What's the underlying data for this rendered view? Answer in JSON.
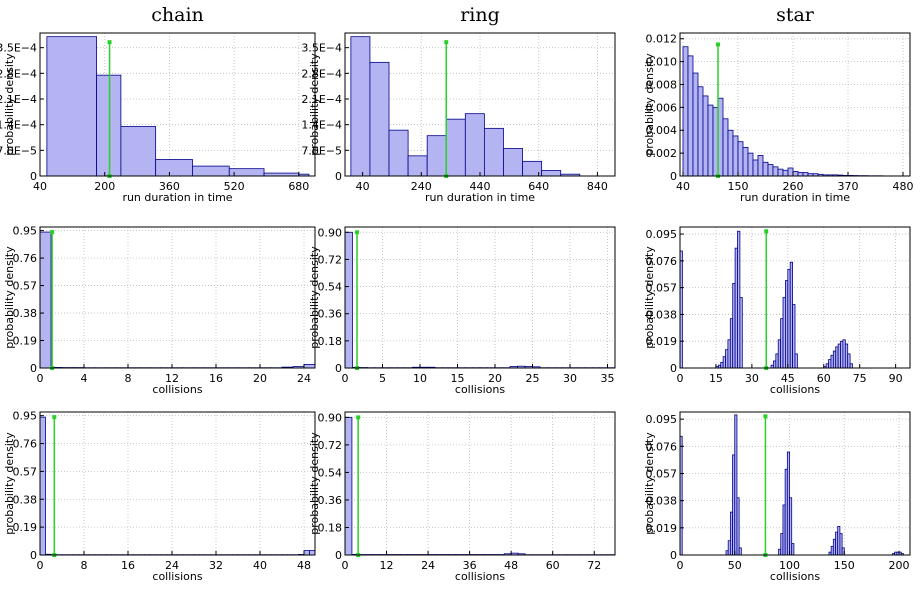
{
  "chart_data": [
    {
      "type": "histogram",
      "title": "chain",
      "xlabel": "run duration in time",
      "ylabel": "probability density",
      "bins": [
        57,
        180,
        240,
        326,
        417,
        508,
        594,
        680,
        705
      ],
      "values": [
        0.00038,
        0.000275,
        0.000135,
        4.5e-05,
        2.7e-05,
        2e-05,
        8e-06,
        5e-06
      ],
      "xlim": [
        40,
        720
      ],
      "xticks": [
        40,
        200,
        360,
        520,
        680
      ],
      "ylim": [
        0,
        0.00039
      ],
      "yticks": [
        0,
        {
          "value": 7e-05,
          "label": "7.0E−5"
        },
        {
          "value": 0.00014,
          "label": "1.4E−4"
        },
        {
          "value": 0.00021,
          "label": "2.1E−4"
        },
        {
          "value": 0.00028,
          "label": "2.8E−4"
        },
        {
          "value": 0.00035,
          "label": "3.5E−4"
        }
      ],
      "vline": {
        "x": 212,
        "ymax": 0.000365
      },
      "color": "#b4b4f2",
      "edgecolor": "#00008b",
      "line_color": "#2ad02a",
      "grid": true
    },
    {
      "type": "histogram",
      "title": "ring",
      "xlabel": "run duration in time",
      "ylabel": "probability density",
      "bins": [
        0,
        65,
        130,
        195,
        260,
        325,
        390,
        455,
        520,
        585,
        650,
        715,
        780
      ],
      "values": [
        0.00038,
        0.00031,
        0.000125,
        5.5e-05,
        0.00011,
        0.000155,
        0.00017,
        0.00013,
        7.5e-05,
        4e-05,
        1.5e-05,
        5e-06
      ],
      "xlim": [
        -20,
        900
      ],
      "xticks": [
        40,
        240,
        440,
        640,
        840
      ],
      "ylim": [
        0,
        0.00039
      ],
      "yticks": [
        0,
        {
          "value": 7e-05,
          "label": "7.0E−5"
        },
        {
          "value": 0.00014,
          "label": "1.4E−4"
        },
        {
          "value": 0.00021,
          "label": "2.1E−4"
        },
        {
          "value": 0.00028,
          "label": "2.8E−4"
        },
        {
          "value": 0.00035,
          "label": "3.5E−4"
        }
      ],
      "vline": {
        "x": 325,
        "ymax": 0.000365
      },
      "color": "#b4b4f2",
      "edgecolor": "#00008b",
      "line_color": "#2ad02a",
      "grid": true
    },
    {
      "type": "histogram",
      "title": "star",
      "xlabel": "run duration in time",
      "ylabel": "probability density",
      "bins": [
        40,
        50,
        60,
        70,
        80,
        90,
        100,
        110,
        120,
        130,
        140,
        150,
        160,
        170,
        180,
        190,
        200,
        210,
        220,
        230,
        240,
        250,
        260,
        270,
        280,
        290,
        300,
        310,
        320,
        330,
        340,
        350,
        360,
        370,
        380,
        390,
        400,
        410,
        420,
        430,
        440,
        450,
        460,
        470,
        480
      ],
      "values": [
        0.0113,
        0.0105,
        0.009,
        0.0078,
        0.007,
        0.0062,
        0.006,
        0.0068,
        0.005,
        0.004,
        0.0035,
        0.003,
        0.0025,
        0.002,
        0.0014,
        0.0018,
        0.0012,
        0.001,
        0.0008,
        0.0006,
        0.0005,
        0.0007,
        0.0004,
        0.0003,
        0.0003,
        0.0002,
        0.0002,
        0.00015,
        0.0001,
        0.0001,
        0.0001,
        8e-05,
        5e-05,
        5e-05,
        4e-05,
        3e-05,
        3e-05,
        2e-05,
        2e-05,
        2e-05,
        1e-05,
        1e-05,
        1e-05,
        1e-05
      ],
      "xlim": [
        34,
        494
      ],
      "xticks": [
        40,
        150,
        260,
        370,
        480
      ],
      "ylim": [
        0,
        0.0125
      ],
      "yticks": [
        0,
        0.002,
        0.004,
        0.006,
        0.008,
        {
          "value": 0.01,
          "label": "0.010"
        },
        0.012
      ],
      "vline": {
        "x": 110,
        "ymax": 0.0115
      },
      "color": "#b4b4f2",
      "edgecolor": "#00008b",
      "line_color": "#2ad02a",
      "grid": true
    },
    {
      "type": "histogram",
      "xlabel": "collisions",
      "ylabel": "probability density",
      "bins": [
        0,
        1,
        2,
        3,
        4,
        5,
        6,
        7,
        8,
        9,
        10,
        11,
        12,
        13,
        14,
        15,
        16,
        17,
        18,
        19,
        20,
        21,
        22,
        23,
        24,
        25
      ],
      "values": [
        0.94,
        0.004,
        0.003,
        0.003,
        0.002,
        0.002,
        0.002,
        0.002,
        0.002,
        0.002,
        0.002,
        0.002,
        0.002,
        0.002,
        0.002,
        0.002,
        0.002,
        0.002,
        0.002,
        0.002,
        0.002,
        0.002,
        0.006,
        0.01,
        0.025
      ],
      "xlim": [
        0,
        25
      ],
      "xticks": [
        0,
        4,
        8,
        12,
        16,
        20,
        24
      ],
      "ylim": [
        0,
        0.975
      ],
      "yticks": [
        0,
        0.19,
        0.38,
        0.57,
        0.76,
        0.95
      ],
      "vline": {
        "x": 1.1,
        "ymax": 0.94
      },
      "color": "#b4b4f2",
      "edgecolor": "#00008b",
      "line_color": "#2ad02a",
      "grid": true
    },
    {
      "type": "histogram",
      "xlabel": "collisions",
      "ylabel": "probability density",
      "bins": [
        0,
        1,
        2,
        3,
        4,
        5,
        6,
        7,
        8,
        9,
        10,
        11,
        12,
        13,
        14,
        15,
        16,
        17,
        18,
        19,
        20,
        21,
        22,
        23,
        24,
        25,
        26,
        27,
        28,
        29,
        30,
        31,
        32,
        33,
        34,
        35,
        36
      ],
      "values": [
        0.9,
        0.004,
        0.003,
        0.002,
        0.002,
        0.002,
        0.002,
        0.002,
        0.002,
        0.005,
        0.005,
        0.005,
        0.002,
        0.002,
        0.002,
        0.002,
        0.002,
        0.002,
        0.002,
        0.002,
        0.002,
        0.002,
        0.01,
        0.012,
        0.01,
        0.008,
        0.002,
        0.002,
        0.002,
        0.002,
        0.002,
        0.002,
        0.002,
        0.002,
        0.002,
        0.002
      ],
      "xlim": [
        0,
        36
      ],
      "xticks": [
        0,
        5,
        10,
        15,
        20,
        25,
        30,
        35
      ],
      "ylim": [
        0,
        0.935
      ],
      "yticks": [
        0,
        0.18,
        0.36,
        0.54,
        0.72,
        {
          "value": 0.9,
          "label": "0.90"
        }
      ],
      "vline": {
        "x": 1.6,
        "ymax": 0.9
      },
      "color": "#b4b4f2",
      "edgecolor": "#00008b",
      "line_color": "#2ad02a",
      "grid": true
    },
    {
      "type": "histogram",
      "xlabel": "collisions",
      "ylabel": "probability density",
      "bins": [
        0,
        1,
        2,
        3,
        4,
        5,
        6,
        7,
        8,
        9,
        10,
        11,
        12,
        13,
        14,
        15,
        16,
        17,
        18,
        19,
        20,
        21,
        22,
        23,
        24,
        25,
        26,
        27,
        28,
        29,
        30,
        31,
        32,
        33,
        34,
        35,
        36,
        37,
        38,
        39,
        40,
        41,
        42,
        43,
        44,
        45,
        46,
        47,
        48,
        49,
        50,
        51,
        52,
        53,
        54,
        55,
        56,
        57,
        58,
        59,
        60,
        61,
        62,
        63,
        64,
        65,
        66,
        67,
        68,
        69,
        70,
        71,
        72
      ],
      "values": [
        0.083,
        0,
        0,
        0,
        0,
        0,
        0,
        0,
        0,
        0,
        0,
        0,
        0,
        0,
        0,
        0.001,
        0.002,
        0.004,
        0.008,
        0.013,
        0.02,
        0.035,
        0.06,
        0.085,
        0.097,
        0.05,
        0,
        0,
        0,
        0,
        0,
        0,
        0,
        0,
        0,
        0,
        0,
        0,
        0.002,
        0.005,
        0.01,
        0.02,
        0.035,
        0.05,
        0.062,
        0.07,
        0.075,
        0.045,
        0.01,
        0,
        0,
        0,
        0,
        0,
        0,
        0,
        0,
        0,
        0,
        0,
        0.001,
        0.003,
        0.006,
        0.009,
        0.012,
        0.015,
        0.017,
        0.019,
        0.02,
        0.017,
        0.01,
        0.003
      ],
      "xlim": [
        0,
        96
      ],
      "xticks": [
        0,
        15,
        30,
        45,
        60,
        75,
        90
      ],
      "ylim": [
        0,
        0.1
      ],
      "yticks": [
        0,
        0.019,
        0.038,
        0.057,
        0.076,
        0.095
      ],
      "vline": {
        "x": 36,
        "ymax": 0.097
      },
      "color": "#b4b4f2",
      "edgecolor": "#00008b",
      "line_color": "#2ad02a",
      "grid": true
    },
    {
      "type": "histogram",
      "xlabel": "collisions",
      "ylabel": "probability density",
      "bins": [
        0,
        1,
        2,
        3,
        4,
        5,
        6,
        7,
        8,
        9,
        10,
        11,
        12,
        13,
        14,
        15,
        16,
        17,
        18,
        19,
        20,
        21,
        22,
        23,
        24,
        25,
        26,
        27,
        28,
        29,
        30,
        31,
        32,
        33,
        34,
        35,
        36,
        37,
        38,
        39,
        40,
        41,
        42,
        43,
        44,
        45,
        46,
        47,
        48,
        49,
        50
      ],
      "values": [
        0.94,
        0.005,
        0.002,
        0.002,
        0.002,
        0.002,
        0.002,
        0.002,
        0.002,
        0.002,
        0.002,
        0.002,
        0.002,
        0.002,
        0.002,
        0.002,
        0.002,
        0.002,
        0.002,
        0.002,
        0.002,
        0.002,
        0.002,
        0.002,
        0.002,
        0.002,
        0.002,
        0.002,
        0.002,
        0.002,
        0.002,
        0.002,
        0.002,
        0.002,
        0.002,
        0.002,
        0.002,
        0.002,
        0.002,
        0.002,
        0.002,
        0.002,
        0.002,
        0.002,
        0.002,
        0.002,
        0.002,
        0.004,
        0.03,
        0.03
      ],
      "xlim": [
        0,
        50
      ],
      "xticks": [
        0,
        8,
        16,
        24,
        32,
        40,
        48
      ],
      "ylim": [
        0,
        0.975
      ],
      "yticks": [
        0,
        0.19,
        0.38,
        0.57,
        0.76,
        0.95
      ],
      "vline": {
        "x": 2.6,
        "ymax": 0.94
      },
      "color": "#b4b4f2",
      "edgecolor": "#00008b",
      "line_color": "#2ad02a",
      "grid": true
    },
    {
      "type": "histogram",
      "xlabel": "collisions",
      "ylabel": "probability density",
      "bins": [
        0,
        2,
        4,
        6,
        8,
        10,
        12,
        14,
        16,
        18,
        20,
        22,
        24,
        26,
        28,
        30,
        32,
        34,
        36,
        38,
        40,
        42,
        44,
        46,
        48,
        50,
        52,
        54,
        56,
        58,
        60,
        62,
        64,
        66,
        68,
        70,
        72,
        74,
        76,
        78
      ],
      "values": [
        0.9,
        0.004,
        0.003,
        0.003,
        0.003,
        0.003,
        0.003,
        0.003,
        0.003,
        0.003,
        0.003,
        0.003,
        0.003,
        0.003,
        0.003,
        0.003,
        0.003,
        0.003,
        0.003,
        0.003,
        0.003,
        0.003,
        0.003,
        0.008,
        0.012,
        0.008,
        0.002,
        0.002,
        0.002,
        0.002,
        0.002,
        0.002,
        0.002,
        0.002,
        0.002,
        0.002,
        0.002,
        0.002,
        0.002
      ],
      "xlim": [
        0,
        78
      ],
      "xticks": [
        0,
        12,
        24,
        36,
        48,
        60,
        72
      ],
      "ylim": [
        0,
        0.935
      ],
      "yticks": [
        0,
        0.18,
        0.36,
        0.54,
        0.72,
        {
          "value": 0.9,
          "label": "0.90"
        }
      ],
      "vline": {
        "x": 3.8,
        "ymax": 0.9
      },
      "color": "#b4b4f2",
      "edgecolor": "#00008b",
      "line_color": "#2ad02a",
      "grid": true
    },
    {
      "type": "histogram",
      "xlabel": "collisions",
      "ylabel": "probability density",
      "bins": [
        0,
        2,
        4,
        6,
        8,
        10,
        12,
        14,
        16,
        18,
        20,
        22,
        24,
        26,
        28,
        30,
        32,
        34,
        36,
        38,
        40,
        42,
        44,
        46,
        48,
        50,
        52,
        54,
        56,
        58,
        60,
        62,
        64,
        66,
        68,
        70,
        72,
        74,
        76,
        78,
        80,
        82,
        84,
        86,
        88,
        90,
        92,
        94,
        96,
        98,
        100,
        102,
        104,
        106,
        108,
        110,
        112,
        114,
        116,
        118,
        120,
        122,
        124,
        126,
        128,
        130,
        132,
        134,
        136,
        138,
        140,
        142,
        144,
        146,
        148,
        150,
        152,
        154,
        156,
        158,
        160,
        162,
        164,
        166,
        168,
        170,
        172,
        174,
        176,
        178,
        180,
        182,
        184,
        186,
        188,
        190,
        192,
        194,
        196,
        198,
        200,
        202,
        204
      ],
      "values": [
        0.083,
        0,
        0,
        0,
        0,
        0,
        0,
        0,
        0,
        0,
        0,
        0,
        0,
        0,
        0,
        0,
        0,
        0,
        0,
        0,
        0,
        0.003,
        0.01,
        0.03,
        0.07,
        0.098,
        0.04,
        0.005,
        0,
        0,
        0,
        0,
        0,
        0,
        0,
        0,
        0,
        0,
        0,
        0,
        0,
        0,
        0,
        0,
        0,
        0.004,
        0.015,
        0.035,
        0.06,
        0.072,
        0.04,
        0.008,
        0,
        0,
        0,
        0,
        0,
        0,
        0,
        0,
        0,
        0,
        0,
        0,
        0,
        0,
        0,
        0,
        0.002,
        0.006,
        0.011,
        0.016,
        0.02,
        0.015,
        0.005,
        0,
        0,
        0,
        0,
        0,
        0,
        0,
        0,
        0,
        0,
        0,
        0,
        0,
        0,
        0,
        0,
        0,
        0,
        0,
        0,
        0,
        0,
        0.001,
        0.002,
        0.002,
        0.002,
        0.001
      ],
      "xlim": [
        0,
        210
      ],
      "xticks": [
        0,
        50,
        100,
        150,
        200
      ],
      "ylim": [
        0,
        0.1
      ],
      "yticks": [
        0,
        0.019,
        0.038,
        0.057,
        0.076,
        0.095
      ],
      "vline": {
        "x": 78,
        "ymax": 0.097
      },
      "color": "#b4b4f2",
      "edgecolor": "#00008b",
      "line_color": "#2ad02a",
      "grid": true
    }
  ]
}
